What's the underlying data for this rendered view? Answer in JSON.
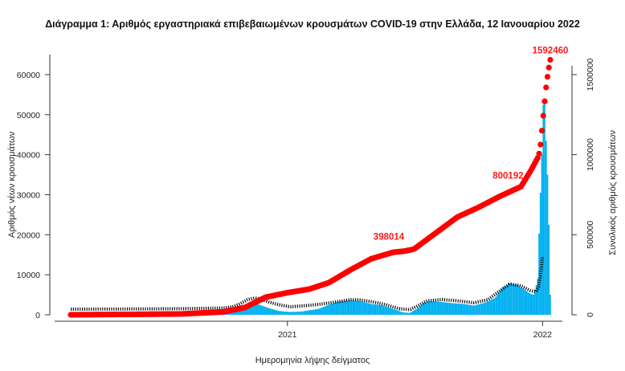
{
  "chart_data": {
    "type": "bar",
    "title": "Διάγραμμα 1: Αριθμός εργαστηριακά επιβεβαιωμένων κρουσμάτων COVID-19 στην Ελλάδα, 12 Ιανουαρίου 2022",
    "xlabel": "Ημερομηνία λήψης δείγματος",
    "ylabel_left": "Αριθμός νέων κρουσμάτων",
    "ylabel_right": "Συνολικός αριθμός κρουσμάτων",
    "x_tick_labels": [
      "2021",
      "2022"
    ],
    "x_range": [
      "2020-02-26",
      "2022-01-12"
    ],
    "ylim_left": [
      0,
      65000
    ],
    "yticks_left": [
      0,
      10000,
      20000,
      30000,
      40000,
      50000,
      60000
    ],
    "ylim_right": [
      0,
      1625000
    ],
    "yticks_right": [
      0,
      500000,
      1000000,
      1500000
    ],
    "grid": false,
    "legend": "none",
    "annotations": [
      {
        "text": "398014",
        "date": "2021-06-18",
        "value": 398014
      },
      {
        "text": "800192",
        "date": "2021-12-01",
        "value": 800192
      },
      {
        "text": "1592460",
        "date": "2022-01-12",
        "value": 1592460
      }
    ],
    "series": [
      {
        "name": "",
        "kind": "bar",
        "color": "#00b0f0",
        "daily_new_cases": [
          [
            "2020-02-26",
            0
          ],
          [
            "2020-03-20",
            90
          ],
          [
            "2020-04-01",
            80
          ],
          [
            "2020-05-01",
            20
          ],
          [
            "2020-06-15",
            15
          ],
          [
            "2020-07-15",
            40
          ],
          [
            "2020-08-10",
            200
          ],
          [
            "2020-09-01",
            300
          ],
          [
            "2020-10-01",
            450
          ],
          [
            "2020-10-15",
            700
          ],
          [
            "2020-10-25",
            1500
          ],
          [
            "2020-11-05",
            2800
          ],
          [
            "2020-11-15",
            3100
          ],
          [
            "2020-11-25",
            2300
          ],
          [
            "2020-12-05",
            1700
          ],
          [
            "2020-12-20",
            950
          ],
          [
            "2021-01-05",
            700
          ],
          [
            "2021-01-20",
            800
          ],
          [
            "2021-02-01",
            1100
          ],
          [
            "2021-02-15",
            1500
          ],
          [
            "2021-03-01",
            2500
          ],
          [
            "2021-03-15",
            3300
          ],
          [
            "2021-04-01",
            3600
          ],
          [
            "2021-04-15",
            3400
          ],
          [
            "2021-05-01",
            2700
          ],
          [
            "2021-05-15",
            2400
          ],
          [
            "2021-06-01",
            1500
          ],
          [
            "2021-06-15",
            600
          ],
          [
            "2021-06-25",
            450
          ],
          [
            "2021-07-05",
            1500
          ],
          [
            "2021-07-15",
            3000
          ],
          [
            "2021-07-25",
            3400
          ],
          [
            "2021-08-10",
            3200
          ],
          [
            "2021-08-25",
            2900
          ],
          [
            "2021-09-10",
            2700
          ],
          [
            "2021-09-25",
            2300
          ],
          [
            "2021-10-10",
            3000
          ],
          [
            "2021-10-25",
            4200
          ],
          [
            "2021-11-05",
            6800
          ],
          [
            "2021-11-15",
            7800
          ],
          [
            "2021-11-25",
            7500
          ],
          [
            "2021-12-05",
            6400
          ],
          [
            "2021-12-15",
            5200
          ],
          [
            "2021-12-20",
            5000
          ],
          [
            "2021-12-25",
            9000
          ],
          [
            "2021-12-28",
            26000
          ],
          [
            "2021-12-30",
            35000
          ],
          [
            "2022-01-01",
            45000
          ],
          [
            "2022-01-03",
            60000
          ],
          [
            "2022-01-05",
            47000
          ],
          [
            "2022-01-07",
            40000
          ],
          [
            "2022-01-09",
            30000
          ],
          [
            "2022-01-11",
            15000
          ],
          [
            "2022-01-12",
            5000
          ]
        ]
      },
      {
        "name": "",
        "kind": "line",
        "color": "#000000",
        "moving_average": [
          [
            "2020-02-26",
            1400
          ],
          [
            "2020-06-01",
            1450
          ],
          [
            "2020-08-15",
            1550
          ],
          [
            "2020-10-01",
            1700
          ],
          [
            "2020-10-15",
            2000
          ],
          [
            "2020-10-25",
            2700
          ],
          [
            "2020-11-05",
            3800
          ],
          [
            "2020-11-15",
            4200
          ],
          [
            "2020-11-25",
            3900
          ],
          [
            "2020-12-05",
            3200
          ],
          [
            "2020-12-20",
            2500
          ],
          [
            "2021-01-05",
            2000
          ],
          [
            "2021-01-20",
            2200
          ],
          [
            "2021-02-15",
            2600
          ],
          [
            "2021-03-15",
            3300
          ],
          [
            "2021-04-01",
            3800
          ],
          [
            "2021-04-15",
            3700
          ],
          [
            "2021-05-01",
            3300
          ],
          [
            "2021-05-20",
            2600
          ],
          [
            "2021-06-10",
            1500
          ],
          [
            "2021-06-25",
            1300
          ],
          [
            "2021-07-05",
            2100
          ],
          [
            "2021-07-20",
            3500
          ],
          [
            "2021-08-10",
            3800
          ],
          [
            "2021-09-01",
            3500
          ],
          [
            "2021-09-25",
            3000
          ],
          [
            "2021-10-15",
            3800
          ],
          [
            "2021-11-05",
            6500
          ],
          [
            "2021-11-15",
            7700
          ],
          [
            "2021-11-30",
            7300
          ],
          [
            "2021-12-15",
            6000
          ],
          [
            "2021-12-25",
            5800
          ],
          [
            "2021-12-31",
            12000
          ],
          [
            "2022-01-03",
            20000
          ]
        ]
      },
      {
        "name": "",
        "kind": "cumulative",
        "axis": "right",
        "color": "#ff0000",
        "cumulative_cases": [
          [
            "2020-02-26",
            0
          ],
          [
            "2020-08-01",
            5000
          ],
          [
            "2020-10-01",
            18000
          ],
          [
            "2020-11-01",
            45000
          ],
          [
            "2020-12-01",
            110000
          ],
          [
            "2021-01-01",
            138000
          ],
          [
            "2021-02-01",
            160000
          ],
          [
            "2021-03-01",
            200000
          ],
          [
            "2021-04-01",
            280000
          ],
          [
            "2021-05-01",
            350000
          ],
          [
            "2021-06-01",
            390000
          ],
          [
            "2021-06-18",
            398014
          ],
          [
            "2021-07-01",
            410000
          ],
          [
            "2021-08-01",
            510000
          ],
          [
            "2021-09-01",
            610000
          ],
          [
            "2021-10-01",
            670000
          ],
          [
            "2021-11-01",
            740000
          ],
          [
            "2021-12-01",
            800192
          ],
          [
            "2021-12-15",
            900000
          ],
          [
            "2021-12-25",
            980000
          ],
          [
            "2021-12-28",
            1020000
          ],
          [
            "2021-12-31",
            1150000
          ],
          [
            "2022-01-03",
            1290000
          ],
          [
            "2022-01-06",
            1420000
          ],
          [
            "2022-01-09",
            1520000
          ],
          [
            "2022-01-12",
            1592460
          ]
        ]
      }
    ]
  }
}
